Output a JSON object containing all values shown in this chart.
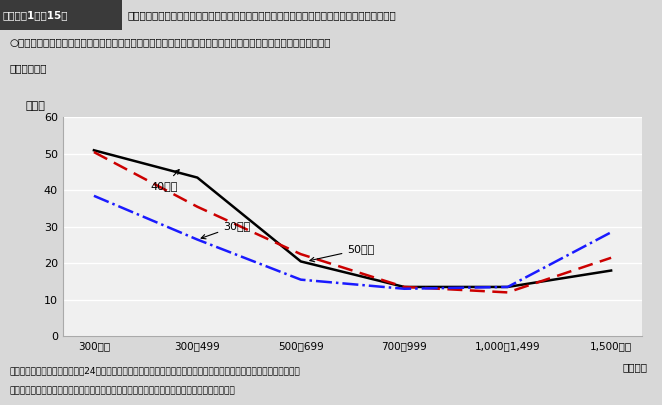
{
  "title_box": "第３－（1）－15図",
  "title_main": "年収階級別初職からの転職回数が２回以上の者の割合（役員又は正規の職員・従業員、男女計）",
  "subtitle_line1": "○　比較的所得が低い層と高所得者層で２回以上の転職経験者が多く、中間層では２回以上の転職経験者は相対的",
  "subtitle_line2": "　に少ない。",
  "ylabel": "（％）",
  "xlabel": "（万円）",
  "categories": [
    "300未満",
    "300～499",
    "500～699",
    "700～999",
    "1,000～1,499",
    "1,500以上"
  ],
  "ylim": [
    0,
    60
  ],
  "yticks": [
    0,
    10,
    20,
    30,
    40,
    50,
    60
  ],
  "source_text": "資料出所　総務省統計局「平成24年就業構造基本調査」の調査票情報を厚生労働省労働政策担当参事官室にて独自集計",
  "note_text": "　（注）　現職、前職以外が初職である者を「初職からの転職経験が２回以上の者」とした。",
  "series_50": [
    51.0,
    43.5,
    20.5,
    13.5,
    13.5,
    18.0
  ],
  "series_40": [
    50.5,
    35.5,
    22.5,
    13.5,
    12.0,
    21.5
  ],
  "series_30": [
    38.5,
    26.5,
    15.5,
    13.0,
    13.5,
    28.5
  ],
  "color_50": "#000000",
  "color_40": "#cc0000",
  "color_30": "#1a1aff",
  "x_positions": [
    0,
    1,
    2,
    3,
    4,
    5
  ],
  "bg_color": "#d8d8d8",
  "plot_bg_color": "#f0f0f0",
  "title_bg_color": "#3a3a3a",
  "title_text_color": "#ffffff"
}
